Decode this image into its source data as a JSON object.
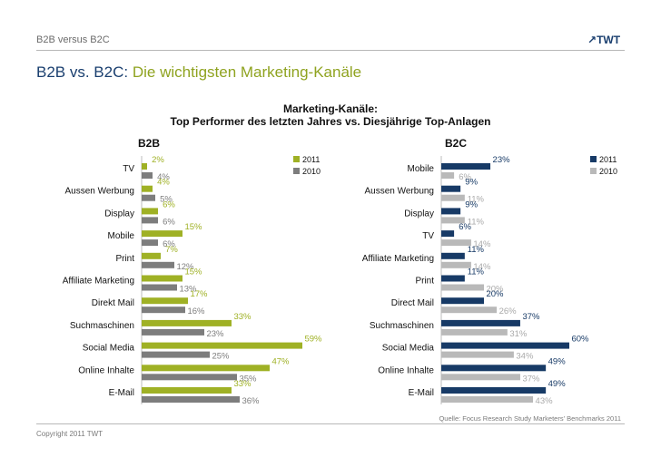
{
  "header": {
    "section_label": "B2B versus B2C",
    "logo_text": "TWT",
    "title_part1": "B2B vs. B2C:",
    "title_part2": "Die wichtigsten Marketing-Kanäle",
    "subtitle_line1": "Marketing-Kanäle:",
    "subtitle_line2": "Top Performer des letzten Jahres vs. Diesjährige Top-Anlagen"
  },
  "source": "Quelle: Focus Research Study Marketers' Benchmarks 2011",
  "footer": {
    "copyright": "Copyright 2011 TWT"
  },
  "colors": {
    "b2b_2011": "#9fb125",
    "b2b_2010": "#7d7d7d",
    "b2c_2011": "#173a66",
    "b2c_2010": "#b9b9b9"
  },
  "chart_data": [
    {
      "type": "bar",
      "orientation": "horizontal",
      "title": "B2B",
      "unit": "%",
      "xlim": [
        0,
        62
      ],
      "legend_position": "top-right",
      "categories": [
        "TV",
        "Aussen Werbung",
        "Display",
        "Mobile",
        "Print",
        "Affiliate Marketing",
        "Direkt Mail",
        "Suchmaschinen",
        "Social Media",
        "Online Inhalte",
        "E-Mail"
      ],
      "series": [
        {
          "name": "2011",
          "values": [
            2,
            4,
            6,
            15,
            7,
            15,
            17,
            33,
            59,
            47,
            33
          ]
        },
        {
          "name": "2010",
          "values": [
            4,
            5,
            6,
            6,
            12,
            13,
            16,
            23,
            25,
            35,
            36
          ]
        }
      ]
    },
    {
      "type": "bar",
      "orientation": "horizontal",
      "title": "B2C",
      "unit": "%",
      "xlim": [
        0,
        62
      ],
      "legend_position": "top-right",
      "categories": [
        "Mobile",
        "Aussen Werbung",
        "Display",
        "TV",
        "Affiliate Marketing",
        "Print",
        "Direct Mail",
        "Suchmaschinen",
        "Social Media",
        "Online Inhalte",
        "E-Mail"
      ],
      "series": [
        {
          "name": "2011",
          "values": [
            23,
            9,
            9,
            6,
            11,
            11,
            20,
            37,
            60,
            49,
            49
          ]
        },
        {
          "name": "2010",
          "values": [
            6,
            11,
            11,
            14,
            14,
            20,
            26,
            31,
            34,
            37,
            43
          ]
        }
      ]
    }
  ]
}
